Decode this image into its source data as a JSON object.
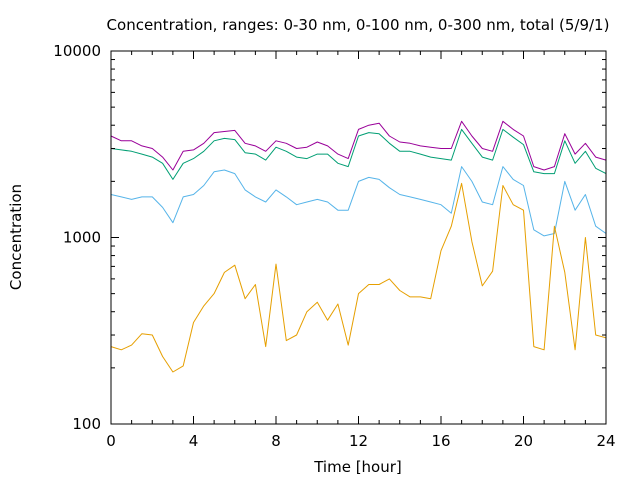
{
  "chart_data": {
    "type": "line",
    "title": "Concentration, ranges: 0-30 nm, 0-100 nm, 0-300 nm, total (5/9/1)",
    "xlabel": "Time [hour]",
    "ylabel": "Concentration",
    "xlim": [
      0,
      24
    ],
    "ylim": [
      100,
      10000
    ],
    "yscale": "log",
    "grid": false,
    "legend": "none",
    "xticks": [
      0,
      4,
      8,
      12,
      16,
      20,
      24
    ],
    "xtick_labels": [
      "0",
      "4",
      "8",
      "12",
      "16",
      "20",
      "24"
    ],
    "yticks": [
      100,
      1000,
      10000
    ],
    "ytick_labels": [
      "100",
      "1000",
      "10000"
    ],
    "x": [
      0,
      0.5,
      1,
      1.5,
      2,
      2.5,
      3,
      3.5,
      4,
      4.5,
      5,
      5.5,
      6,
      6.5,
      7,
      7.5,
      8,
      8.5,
      9,
      9.5,
      10,
      10.5,
      11,
      11.5,
      12,
      12.5,
      13,
      13.5,
      14,
      14.5,
      15,
      15.5,
      16,
      16.5,
      17,
      17.5,
      18,
      18.5,
      19,
      19.5,
      20,
      20.5,
      21,
      21.5,
      22,
      22.5,
      23,
      23.5,
      24
    ],
    "series": [
      {
        "color": "#990099",
        "values": [
          3500,
          3300,
          3300,
          3100,
          3000,
          2700,
          2300,
          2900,
          2950,
          3200,
          3650,
          3700,
          3750,
          3200,
          3100,
          2900,
          3300,
          3200,
          3000,
          3050,
          3250,
          3100,
          2800,
          2650,
          3800,
          4000,
          4100,
          3500,
          3250,
          3200,
          3100,
          3050,
          3000,
          3000,
          4200,
          3500,
          3000,
          2900,
          4200,
          3800,
          3500,
          2400,
          2300,
          2400,
          3600,
          2800,
          3200,
          2700,
          2600
        ]
      },
      {
        "color": "#009e73",
        "values": [
          3000,
          2950,
          2900,
          2800,
          2700,
          2500,
          2050,
          2500,
          2650,
          2900,
          3300,
          3400,
          3350,
          2850,
          2800,
          2600,
          3050,
          2900,
          2700,
          2650,
          2800,
          2800,
          2500,
          2400,
          3500,
          3650,
          3600,
          3200,
          2900,
          2900,
          2800,
          2700,
          2650,
          2600,
          3800,
          3200,
          2700,
          2600,
          3800,
          3450,
          3150,
          2250,
          2200,
          2200,
          3300,
          2500,
          2900,
          2350,
          2200
        ]
      },
      {
        "color": "#56b4e9",
        "values": [
          1700,
          1650,
          1600,
          1650,
          1650,
          1450,
          1200,
          1650,
          1700,
          1900,
          2250,
          2300,
          2200,
          1800,
          1650,
          1550,
          1800,
          1650,
          1500,
          1550,
          1600,
          1550,
          1400,
          1400,
          2000,
          2100,
          2050,
          1850,
          1700,
          1650,
          1600,
          1550,
          1500,
          1350,
          2400,
          2000,
          1550,
          1500,
          2400,
          2050,
          1900,
          1100,
          1020,
          1050,
          2000,
          1400,
          1700,
          1150,
          1050
        ]
      },
      {
        "color": "#e69f00",
        "values": [
          260,
          250,
          265,
          305,
          300,
          230,
          190,
          205,
          350,
          430,
          500,
          650,
          710,
          470,
          560,
          260,
          720,
          280,
          300,
          400,
          450,
          360,
          440,
          265,
          500,
          560,
          560,
          600,
          520,
          480,
          480,
          470,
          850,
          1150,
          1950,
          950,
          550,
          660,
          1900,
          1500,
          1400,
          260,
          250,
          1150,
          650,
          250,
          1000,
          300,
          290
        ]
      }
    ]
  }
}
